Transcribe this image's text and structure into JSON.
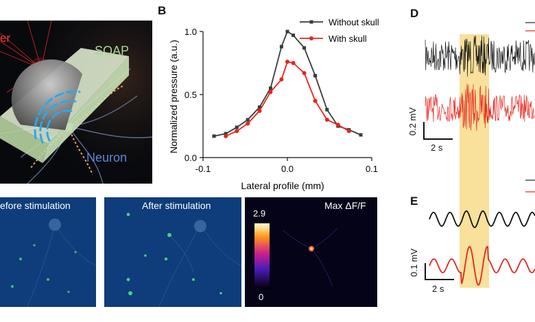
{
  "panels": {
    "a": {
      "labels": {
        "laser": "er",
        "soap": "SOAP",
        "neuron": "Neuron"
      }
    },
    "b": {
      "letter": "B",
      "legend": [
        "Without skull",
        "With skull"
      ]
    },
    "c": {
      "labels": [
        "efore stimulation",
        "After stimulation",
        "Max ΔF/F"
      ],
      "colorbar": {
        "max": "2.9",
        "min": "0"
      }
    },
    "d": {
      "letter": "D",
      "scalebar_y": "0.2 mV",
      "scalebar_x": "2 s"
    },
    "e": {
      "letter": "E",
      "scalebar_y": "0.1 mV",
      "scalebar_x": "2 s"
    }
  },
  "chart_data": {
    "type": "line",
    "title": "",
    "xlabel": "Lateral profile (mm)",
    "ylabel": "Normalized pressure (a.u.)",
    "xlim": [
      -0.1,
      0.1
    ],
    "ylim": [
      0.0,
      1.0
    ],
    "xticks": [
      "-0.1",
      "0.0",
      "0.1"
    ],
    "yticks": [
      "0.0",
      "0.5",
      "1.0"
    ],
    "legend_position": "top-right",
    "series": [
      {
        "name": "Without skull",
        "color": "#3a3a3a",
        "x": [
          -0.087,
          -0.073,
          -0.06,
          -0.047,
          -0.033,
          -0.02,
          -0.007,
          0.0,
          0.007,
          0.02,
          0.033,
          0.047,
          0.06,
          0.073,
          0.087
        ],
        "y": [
          0.17,
          0.19,
          0.24,
          0.3,
          0.4,
          0.55,
          0.88,
          1.0,
          0.97,
          0.87,
          0.65,
          0.38,
          0.25,
          0.22,
          0.18
        ]
      },
      {
        "name": "With skull",
        "color": "#e8241c",
        "x": [
          -0.073,
          -0.06,
          -0.047,
          -0.033,
          -0.02,
          -0.007,
          0.0,
          0.007,
          0.02,
          0.033,
          0.047,
          0.06,
          0.073
        ],
        "y": [
          0.17,
          0.21,
          0.27,
          0.37,
          0.52,
          0.62,
          0.76,
          0.75,
          0.67,
          0.45,
          0.3,
          0.26,
          0.21
        ]
      }
    ]
  }
}
